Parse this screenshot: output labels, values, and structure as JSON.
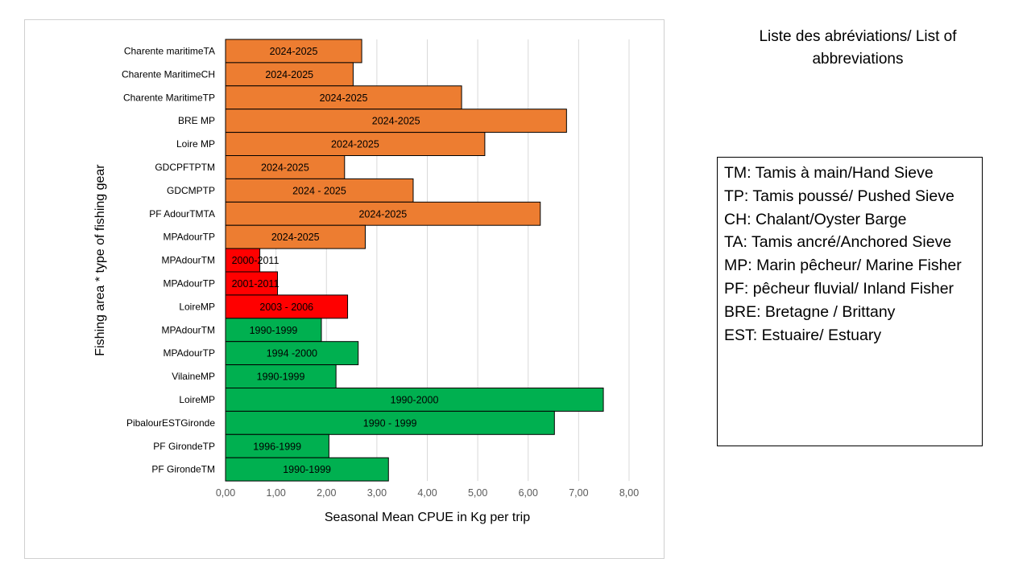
{
  "chart_data": {
    "type": "bar",
    "orientation": "horizontal",
    "xlabel": "Seasonal Mean CPUE in Kg per trip",
    "ylabel": "Fishing area * type of fishing gear",
    "xlim": [
      0,
      8
    ],
    "xticks": [
      "0,00",
      "1,00",
      "2,00",
      "3,00",
      "4,00",
      "5,00",
      "6,00",
      "7,00",
      "8,00"
    ],
    "grid": "vertical",
    "bars": [
      {
        "category": "Charente maritimeTA",
        "value": 2.7,
        "label": "2024-2025",
        "color": "#ED7D31"
      },
      {
        "category": "Charente MaritimeCH",
        "value": 2.53,
        "label": "2024-2025",
        "color": "#ED7D31"
      },
      {
        "category": "Charente MaritimeTP",
        "value": 4.68,
        "label": "2024-2025",
        "color": "#ED7D31"
      },
      {
        "category": "BRE MP",
        "value": 6.76,
        "label": "2024-2025",
        "color": "#ED7D31"
      },
      {
        "category": "Loire MP",
        "value": 5.14,
        "label": "2024-2025",
        "color": "#ED7D31"
      },
      {
        "category": "GDCPFTPTM",
        "value": 2.36,
        "label": "2024-2025",
        "color": "#ED7D31"
      },
      {
        "category": "GDCMPTP",
        "value": 3.72,
        "label": "2024 - 2025",
        "color": "#ED7D31"
      },
      {
        "category": "PF AdourTMTA",
        "value": 6.24,
        "label": "2024-2025",
        "color": "#ED7D31"
      },
      {
        "category": "MPAdourTP",
        "value": 2.77,
        "label": "2024-2025",
        "color": "#ED7D31"
      },
      {
        "category": "MPAdourTM",
        "value": 0.68,
        "label": "2000-2011",
        "color": "#FF0000"
      },
      {
        "category": "MPAdourTP",
        "value": 1.03,
        "label": "2001-2011",
        "color": "#FF0000"
      },
      {
        "category": "LoireMP",
        "value": 2.42,
        "label": "2003 - 2006",
        "color": "#FF0000"
      },
      {
        "category": "MPAdourTM",
        "value": 1.9,
        "label": "1990-1999",
        "color": "#00B050"
      },
      {
        "category": "MPAdourTP",
        "value": 2.63,
        "label": "1994 -2000",
        "color": "#00B050"
      },
      {
        "category": "VilaineMP",
        "value": 2.19,
        "label": "1990-1999",
        "color": "#00B050"
      },
      {
        "category": "LoireMP",
        "value": 7.49,
        "label": "1990-2000",
        "color": "#00B050"
      },
      {
        "category": "PibalourESTGironde",
        "value": 6.52,
        "label": "1990 - 1999",
        "color": "#00B050"
      },
      {
        "category": "PF GirondeTP",
        "value": 2.05,
        "label": "1996-1999",
        "color": "#00B050"
      },
      {
        "category": "PF GirondeTM",
        "value": 3.23,
        "label": "1990-1999",
        "color": "#00B050"
      }
    ]
  },
  "legend_panel": {
    "title": "Liste des abréviations/  List of abbreviations",
    "lines": [
      "TM: Tamis à main/Hand Sieve",
      "TP: Tamis poussé/ Pushed Sieve",
      "CH: Chalant/Oyster Barge",
      "TA: Tamis ancré/Anchored Sieve",
      "MP: Marin pêcheur/ Marine Fisher",
      "PF: pêcheur fluvial/ Inland Fisher",
      "BRE: Bretagne / Brittany",
      "EST: Estuaire/ Estuary"
    ]
  }
}
